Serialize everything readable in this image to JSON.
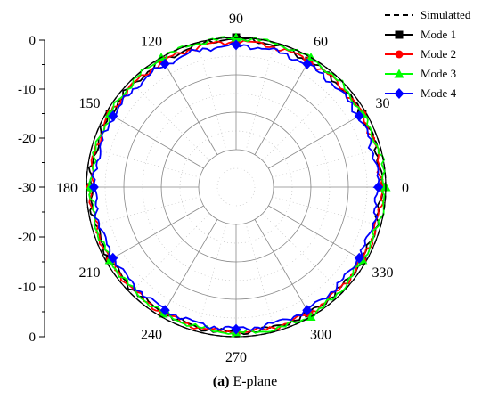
{
  "caption": {
    "label": "(a)",
    "text": "E-plane"
  },
  "colors": {
    "Simulatted": "#000000",
    "Mode 1": "#000000",
    "Mode 2": "#ff0000",
    "Mode 3": "#00ff00",
    "Mode 4": "#0000ff",
    "grid": "#888888"
  },
  "chart_data": {
    "type": "polar-line",
    "title": "",
    "radial_axis": {
      "ticks_top": [
        "0",
        "-10",
        "-20",
        "-30"
      ],
      "ticks_bottom": [
        "-20",
        "-10",
        "0"
      ],
      "ticks_top_values": [
        0,
        -10,
        -20,
        -30
      ],
      "ticks_bottom_values": [
        -20,
        -10,
        0
      ],
      "range": [
        -40,
        0
      ],
      "grid_values": [
        -10,
        -20,
        -30
      ]
    },
    "angular_axis": {
      "unit": "degree",
      "labels": [
        "0",
        "30",
        "60",
        "90",
        "120",
        "150",
        "180",
        "210",
        "240",
        "270",
        "300",
        "330"
      ],
      "values": [
        0,
        30,
        60,
        90,
        120,
        150,
        180,
        210,
        240,
        270,
        300,
        330
      ]
    },
    "grid": true,
    "legend_position": "top-right",
    "series": [
      {
        "name": "Simulatted",
        "style": "dashed",
        "marker": "none",
        "angles": [
          0,
          30,
          60,
          90,
          120,
          150,
          180,
          210,
          240,
          270,
          300,
          330
        ],
        "values": [
          0,
          0,
          0,
          0,
          0,
          0,
          0,
          0,
          0,
          0,
          0,
          0
        ]
      },
      {
        "name": "Mode 1",
        "style": "solid",
        "marker": "square",
        "angles": [
          0,
          30,
          60,
          90,
          120,
          150,
          180,
          210,
          240,
          270,
          300,
          330
        ],
        "values": [
          -1,
          -1,
          -1,
          0,
          -1,
          -1,
          -1,
          -1,
          -1,
          -1,
          -1,
          -1
        ]
      },
      {
        "name": "Mode 2",
        "style": "solid",
        "marker": "circle",
        "angles": [
          0,
          30,
          60,
          90,
          120,
          150,
          180,
          210,
          240,
          270,
          300,
          330
        ],
        "values": [
          -1,
          -1,
          -1,
          -1,
          -1,
          -1,
          -1,
          -1,
          -1,
          -1,
          -1,
          -1
        ]
      },
      {
        "name": "Mode 3",
        "style": "solid",
        "marker": "triangle",
        "angles": [
          0,
          30,
          60,
          90,
          120,
          150,
          180,
          210,
          240,
          270,
          300,
          330
        ],
        "values": [
          0,
          -1,
          0,
          0,
          0,
          -1,
          -1,
          -1,
          -1,
          -1,
          0,
          -1
        ]
      },
      {
        "name": "Mode 4",
        "style": "solid",
        "marker": "diamond",
        "angles": [
          0,
          30,
          60,
          90,
          120,
          150,
          180,
          210,
          240,
          270,
          300,
          330
        ],
        "values": [
          -2,
          -2,
          -2,
          -2,
          -2,
          -2,
          -2,
          -2,
          -2,
          -2,
          -2,
          -2
        ]
      }
    ]
  }
}
